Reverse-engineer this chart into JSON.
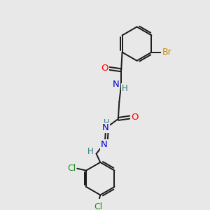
{
  "bg_color": "#e8e8e8",
  "bond_color": "#1a1a1a",
  "atom_colors": {
    "O": "#ff0000",
    "N": "#0000cc",
    "H": "#2a7a7a",
    "Br": "#cc8800",
    "Cl": "#228B22"
  },
  "figsize": [
    3.0,
    3.0
  ],
  "dpi": 100,
  "xlim": [
    0,
    10
  ],
  "ylim": [
    0,
    10
  ]
}
